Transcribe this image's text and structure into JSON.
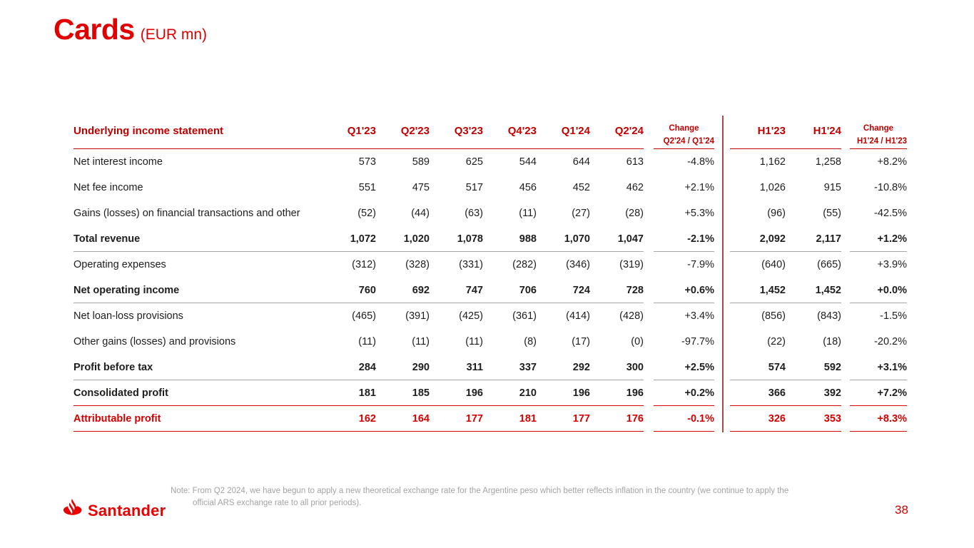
{
  "slide": {
    "title": "Cards",
    "title_suffix": "(EUR mn)",
    "page_number": "38",
    "logo_text": "Santander",
    "note_line1": "Note: From Q2 2024, we have begun to apply a new theoretical exchange rate for the Argentine peso which better reflects inflation in the country (we continue to apply the",
    "note_line2": "official ARS exchange rate to all prior periods)."
  },
  "colors": {
    "brand_red": "#ea0000",
    "header_red": "#c00000",
    "rule_red": "#d50000",
    "rule_gray": "#a6a6a6",
    "divider_red": "#a94848",
    "body_text": "#1d1d1b",
    "note_gray": "#a3a3a3"
  },
  "table": {
    "label_header": "Underlying income statement",
    "quarter_headers": [
      "Q1'23",
      "Q2'23",
      "Q3'23",
      "Q4'23",
      "Q1'24",
      "Q2'24"
    ],
    "change_q": {
      "line1": "Change",
      "line2": "Q2'24 / Q1'24"
    },
    "half_headers": [
      "H1'23",
      "H1'24"
    ],
    "change_h": {
      "line1": "Change",
      "line2": "H1'24 / H1'23"
    },
    "rows": [
      {
        "label": "Net interest income",
        "q": [
          "573",
          "589",
          "625",
          "544",
          "644",
          "613"
        ],
        "chg_q": "-4.8%",
        "h": [
          "1,162",
          "1,258"
        ],
        "chg_h": "+8.2%",
        "bold": false,
        "red": false,
        "rule": null
      },
      {
        "label": "Net fee income",
        "q": [
          "551",
          "475",
          "517",
          "456",
          "452",
          "462"
        ],
        "chg_q": "+2.1%",
        "h": [
          "1,026",
          "915"
        ],
        "chg_h": "-10.8%",
        "bold": false,
        "red": false,
        "rule": null
      },
      {
        "label": "Gains (losses) on financial transactions and other",
        "q": [
          "(52)",
          "(44)",
          "(63)",
          "(11)",
          "(27)",
          "(28)"
        ],
        "chg_q": "+5.3%",
        "h": [
          "(96)",
          "(55)"
        ],
        "chg_h": "-42.5%",
        "bold": false,
        "red": false,
        "rule": null
      },
      {
        "label": "Total revenue",
        "q": [
          "1,072",
          "1,020",
          "1,078",
          "988",
          "1,070",
          "1,047"
        ],
        "chg_q": "-2.1%",
        "h": [
          "2,092",
          "2,117"
        ],
        "chg_h": "+1.2%",
        "bold": true,
        "red": false,
        "rule": "gray"
      },
      {
        "label": "Operating expenses",
        "q": [
          "(312)",
          "(328)",
          "(331)",
          "(282)",
          "(346)",
          "(319)"
        ],
        "chg_q": "-7.9%",
        "h": [
          "(640)",
          "(665)"
        ],
        "chg_h": "+3.9%",
        "bold": false,
        "red": false,
        "rule": null
      },
      {
        "label": "Net operating income",
        "q": [
          "760",
          "692",
          "747",
          "706",
          "724",
          "728"
        ],
        "chg_q": "+0.6%",
        "h": [
          "1,452",
          "1,452"
        ],
        "chg_h": "+0.0%",
        "bold": true,
        "red": false,
        "rule": "gray"
      },
      {
        "label": "Net loan-loss provisions",
        "q": [
          "(465)",
          "(391)",
          "(425)",
          "(361)",
          "(414)",
          "(428)"
        ],
        "chg_q": "+3.4%",
        "h": [
          "(856)",
          "(843)"
        ],
        "chg_h": "-1.5%",
        "bold": false,
        "red": false,
        "rule": null
      },
      {
        "label": "Other gains (losses) and provisions",
        "q": [
          "(11)",
          "(11)",
          "(11)",
          "(8)",
          "(17)",
          "(0)"
        ],
        "chg_q": "-97.7%",
        "h": [
          "(22)",
          "(18)"
        ],
        "chg_h": "-20.2%",
        "bold": false,
        "red": false,
        "rule": null
      },
      {
        "label": "Profit before tax",
        "q": [
          "284",
          "290",
          "311",
          "337",
          "292",
          "300"
        ],
        "chg_q": "+2.5%",
        "h": [
          "574",
          "592"
        ],
        "chg_h": "+3.1%",
        "bold": true,
        "red": false,
        "rule": "gray"
      },
      {
        "label": "Consolidated profit",
        "q": [
          "181",
          "185",
          "196",
          "210",
          "196",
          "196"
        ],
        "chg_q": "+0.2%",
        "h": [
          "366",
          "392"
        ],
        "chg_h": "+7.2%",
        "bold": true,
        "red": false,
        "rule": "red"
      },
      {
        "label": "Attributable profit",
        "q": [
          "162",
          "164",
          "177",
          "181",
          "177",
          "176"
        ],
        "chg_q": "-0.1%",
        "h": [
          "326",
          "353"
        ],
        "chg_h": "+8.3%",
        "bold": true,
        "red": true,
        "rule": "red"
      }
    ]
  }
}
